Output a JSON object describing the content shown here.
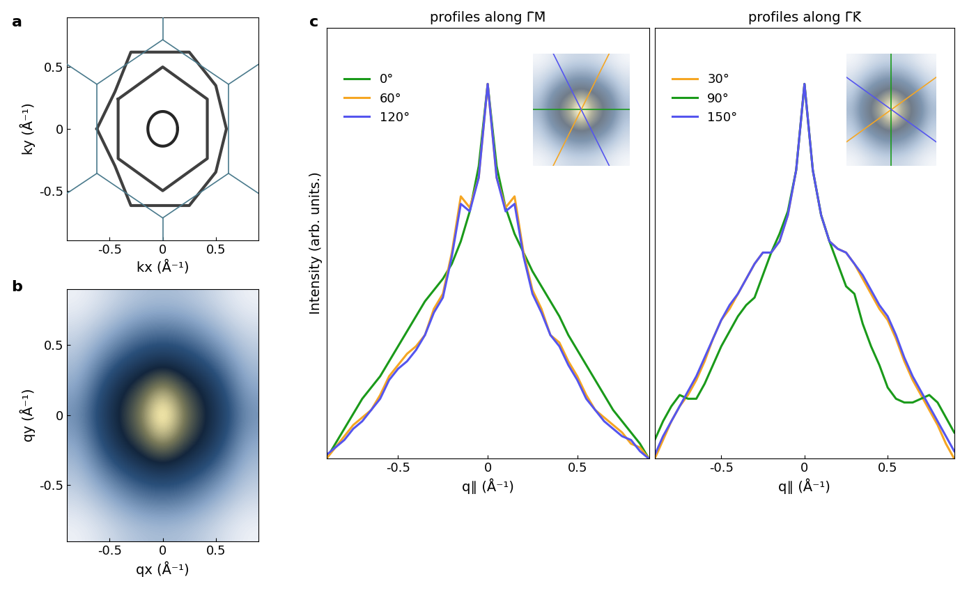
{
  "chart_data": [
    {
      "type": "contour_map",
      "panel": "a",
      "xlabel": "kx (Å⁻¹)",
      "ylabel": "ky (Å⁻¹)",
      "xlim": [
        -0.9,
        0.9
      ],
      "ylim": [
        -0.9,
        0.9
      ],
      "xticks": [
        -0.5,
        0,
        0.5
      ],
      "yticks": [
        -0.5,
        0,
        0.5
      ],
      "bz_color": "#4a7a8c",
      "bz_segments": [
        [
          [
            0,
            0.72
          ],
          [
            0.62,
            0.36
          ]
        ],
        [
          [
            0.62,
            0.36
          ],
          [
            0.62,
            -0.36
          ]
        ],
        [
          [
            0.62,
            -0.36
          ],
          [
            0,
            -0.72
          ]
        ],
        [
          [
            0,
            -0.72
          ],
          [
            -0.62,
            -0.36
          ]
        ],
        [
          [
            -0.62,
            -0.36
          ],
          [
            -0.62,
            0.36
          ]
        ],
        [
          [
            -0.62,
            0.36
          ],
          [
            0,
            0.72
          ]
        ],
        [
          [
            0,
            0.72
          ],
          [
            0,
            0.9
          ]
        ],
        [
          [
            0,
            -0.72
          ],
          [
            0,
            -0.9
          ]
        ],
        [
          [
            0.62,
            0.36
          ],
          [
            0.9,
            0.52
          ]
        ],
        [
          [
            0.62,
            -0.36
          ],
          [
            0.9,
            -0.52
          ]
        ],
        [
          [
            -0.62,
            0.36
          ],
          [
            -0.9,
            0.52
          ]
        ],
        [
          [
            -0.62,
            -0.36
          ],
          [
            -0.9,
            -0.52
          ]
        ]
      ],
      "rings": [
        {
          "center": [
            0,
            0
          ],
          "radius": 0.14
        }
      ],
      "contours": [
        [
          [
            -0.62,
            0
          ],
          [
            -0.45,
            0.3
          ],
          [
            -0.3,
            0.62
          ],
          [
            0.25,
            0.62
          ],
          [
            0.5,
            0.35
          ],
          [
            0.6,
            0.0
          ],
          [
            0.5,
            -0.35
          ],
          [
            0.25,
            -0.62
          ],
          [
            -0.3,
            -0.62
          ],
          [
            -0.45,
            -0.3
          ]
        ],
        [
          [
            -0.42,
            0.24
          ],
          [
            0,
            0.5
          ],
          [
            0.42,
            0.24
          ],
          [
            0.42,
            -0.24
          ],
          [
            0,
            -0.5
          ],
          [
            -0.42,
            -0.24
          ]
        ]
      ]
    },
    {
      "type": "heatmap",
      "panel": "b",
      "xlabel": "qx (Å⁻¹)",
      "ylabel": "qy (Å⁻¹)",
      "xlim": [
        -0.9,
        0.9
      ],
      "ylim": [
        -0.9,
        0.9
      ],
      "xticks": [
        -0.5,
        0,
        0.5
      ],
      "yticks": [
        -0.5,
        0,
        0.5
      ],
      "cells": [
        [
          0.05,
          0.08,
          0.12,
          0.15,
          0.16,
          0.15,
          0.12,
          0.08,
          0.05
        ],
        [
          0.1,
          0.15,
          0.22,
          0.28,
          0.3,
          0.28,
          0.22,
          0.15,
          0.1
        ],
        [
          0.15,
          0.25,
          0.35,
          0.42,
          0.45,
          0.42,
          0.35,
          0.25,
          0.15
        ],
        [
          0.2,
          0.35,
          0.5,
          0.6,
          0.75,
          0.6,
          0.5,
          0.35,
          0.2
        ],
        [
          0.25,
          0.4,
          0.55,
          0.7,
          1.0,
          0.7,
          0.55,
          0.4,
          0.25
        ],
        [
          0.2,
          0.35,
          0.5,
          0.6,
          0.75,
          0.6,
          0.5,
          0.35,
          0.2
        ],
        [
          0.15,
          0.25,
          0.35,
          0.42,
          0.45,
          0.42,
          0.35,
          0.25,
          0.15
        ],
        [
          0.1,
          0.15,
          0.22,
          0.28,
          0.3,
          0.28,
          0.22,
          0.15,
          0.1
        ],
        [
          0.05,
          0.08,
          0.12,
          0.15,
          0.16,
          0.15,
          0.12,
          0.08,
          0.05
        ]
      ]
    },
    {
      "type": "line",
      "panel": "c",
      "title": "profiles along Γ̄M̄",
      "xlabel": "q∥ (Å⁻¹)",
      "ylabel": "Intensity (arb. units.)",
      "xlim": [
        -0.9,
        0.9
      ],
      "ylim": [
        0,
        1.15
      ],
      "xticks": [
        -0.5,
        0,
        0.5
      ],
      "tick_labels": "x",
      "legend": "upper left",
      "x": [
        -0.9,
        -0.85,
        -0.8,
        -0.75,
        -0.7,
        -0.65,
        -0.6,
        -0.55,
        -0.5,
        -0.45,
        -0.4,
        -0.35,
        -0.3,
        -0.25,
        -0.2,
        -0.15,
        -0.1,
        -0.05,
        0,
        0.05,
        0.1,
        0.15,
        0.2,
        0.25,
        0.3,
        0.35,
        0.4,
        0.45,
        0.5,
        0.55,
        0.6,
        0.65,
        0.7,
        0.75,
        0.8,
        0.85,
        0.9
      ],
      "series": [
        {
          "name": "0°",
          "color": "#1a9a1a",
          "values": [
            0.0,
            0.04,
            0.08,
            0.12,
            0.16,
            0.19,
            0.22,
            0.26,
            0.3,
            0.34,
            0.38,
            0.42,
            0.45,
            0.48,
            0.52,
            0.58,
            0.66,
            0.78,
            1.0,
            0.78,
            0.67,
            0.6,
            0.55,
            0.5,
            0.46,
            0.42,
            0.38,
            0.33,
            0.29,
            0.25,
            0.21,
            0.17,
            0.13,
            0.1,
            0.07,
            0.04,
            0.0
          ]
        },
        {
          "name": "60°",
          "color": "#f5a623",
          "values": [
            0.0,
            0.03,
            0.06,
            0.09,
            0.11,
            0.13,
            0.17,
            0.22,
            0.25,
            0.28,
            0.3,
            0.33,
            0.4,
            0.44,
            0.55,
            0.7,
            0.67,
            0.75,
            1.0,
            0.75,
            0.67,
            0.7,
            0.55,
            0.45,
            0.4,
            0.33,
            0.31,
            0.26,
            0.22,
            0.17,
            0.13,
            0.11,
            0.09,
            0.07,
            0.04,
            0.03,
            0.0
          ]
        },
        {
          "name": "120°",
          "color": "#5555ee",
          "values": [
            0.01,
            0.03,
            0.05,
            0.08,
            0.1,
            0.13,
            0.16,
            0.21,
            0.24,
            0.26,
            0.29,
            0.33,
            0.39,
            0.43,
            0.54,
            0.68,
            0.66,
            0.75,
            1.0,
            0.75,
            0.66,
            0.68,
            0.54,
            0.44,
            0.39,
            0.33,
            0.3,
            0.25,
            0.21,
            0.16,
            0.13,
            0.1,
            0.08,
            0.06,
            0.05,
            0.02,
            0.0
          ]
        }
      ]
    },
    {
      "type": "line",
      "panel": "",
      "title": "profiles along Γ̄K̄",
      "xlabel": "q∥ (Å⁻¹)",
      "xlim": [
        -0.9,
        0.9
      ],
      "ylim": [
        0,
        1.15
      ],
      "xticks": [
        -0.5,
        0,
        0.5
      ],
      "tick_labels": "x",
      "legend": "upper left",
      "x": [
        -0.9,
        -0.85,
        -0.8,
        -0.75,
        -0.7,
        -0.65,
        -0.6,
        -0.55,
        -0.5,
        -0.45,
        -0.4,
        -0.35,
        -0.3,
        -0.25,
        -0.2,
        -0.15,
        -0.1,
        -0.05,
        0,
        0.05,
        0.1,
        0.15,
        0.2,
        0.25,
        0.3,
        0.35,
        0.4,
        0.45,
        0.5,
        0.55,
        0.6,
        0.65,
        0.7,
        0.75,
        0.8,
        0.85,
        0.9
      ],
      "series": [
        {
          "name": "30°",
          "color": "#f5a623",
          "values": [
            0.0,
            0.05,
            0.1,
            0.14,
            0.17,
            0.21,
            0.26,
            0.32,
            0.37,
            0.4,
            0.44,
            0.48,
            0.52,
            0.55,
            0.55,
            0.58,
            0.65,
            0.77,
            1.0,
            0.77,
            0.65,
            0.58,
            0.56,
            0.55,
            0.52,
            0.48,
            0.44,
            0.4,
            0.37,
            0.32,
            0.26,
            0.21,
            0.17,
            0.13,
            0.09,
            0.04,
            0.0
          ]
        },
        {
          "name": "90°",
          "color": "#1a9a1a",
          "values": [
            0.05,
            0.1,
            0.14,
            0.17,
            0.16,
            0.16,
            0.2,
            0.25,
            0.3,
            0.34,
            0.38,
            0.41,
            0.43,
            0.49,
            0.55,
            0.6,
            0.66,
            0.77,
            1.0,
            0.77,
            0.65,
            0.58,
            0.52,
            0.46,
            0.44,
            0.36,
            0.3,
            0.25,
            0.19,
            0.16,
            0.15,
            0.15,
            0.16,
            0.17,
            0.15,
            0.11,
            0.07
          ]
        },
        {
          "name": "150°",
          "color": "#5555ee",
          "values": [
            0.01,
            0.06,
            0.1,
            0.14,
            0.18,
            0.22,
            0.27,
            0.32,
            0.37,
            0.41,
            0.44,
            0.48,
            0.52,
            0.55,
            0.55,
            0.58,
            0.65,
            0.77,
            1.0,
            0.77,
            0.65,
            0.58,
            0.56,
            0.55,
            0.52,
            0.49,
            0.45,
            0.41,
            0.38,
            0.33,
            0.27,
            0.22,
            0.18,
            0.14,
            0.1,
            0.06,
            0.02
          ]
        }
      ]
    }
  ]
}
